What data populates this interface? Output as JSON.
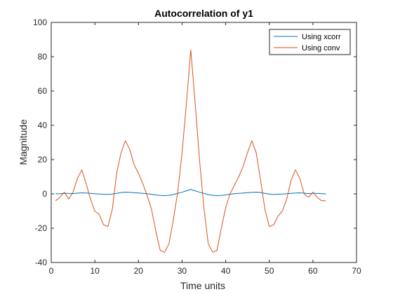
{
  "chart_data": {
    "type": "line",
    "title": "Autocorrelation of y1",
    "xlabel": "Time units",
    "ylabel": "Magnitude",
    "xlim": [
      0,
      70
    ],
    "ylim": [
      -40,
      100
    ],
    "xticks": [
      0,
      10,
      20,
      30,
      40,
      50,
      60,
      70
    ],
    "yticks": [
      -40,
      -20,
      0,
      20,
      40,
      60,
      80,
      100
    ],
    "grid": false,
    "box": true,
    "legend_position": "top-right",
    "series": [
      {
        "name": "Using xcorr",
        "color": "#0072BD",
        "x": [
          1,
          2,
          3,
          4,
          5,
          6,
          7,
          8,
          9,
          10,
          11,
          12,
          13,
          14,
          15,
          16,
          17,
          18,
          19,
          20,
          21,
          22,
          23,
          24,
          25,
          26,
          27,
          28,
          29,
          30,
          31,
          32,
          33,
          34,
          35,
          36,
          37,
          38,
          39,
          40,
          41,
          42,
          43,
          44,
          45,
          46,
          47,
          48,
          49,
          50,
          51,
          52,
          53,
          54,
          55,
          56,
          57,
          58,
          59,
          60,
          61,
          62,
          63
        ],
        "y": [
          0.0,
          0.1,
          0.3,
          0.3,
          0.2,
          0.4,
          0.6,
          0.5,
          0.3,
          0.1,
          -0.1,
          -0.2,
          -0.3,
          -0.1,
          0.3,
          0.8,
          1.0,
          0.9,
          0.7,
          0.5,
          0.3,
          0.1,
          -0.2,
          -0.6,
          -0.9,
          -1.0,
          -0.8,
          -0.4,
          0.3,
          1.0,
          1.8,
          2.6,
          1.8,
          1.0,
          0.3,
          -0.4,
          -0.8,
          -1.0,
          -0.9,
          -0.6,
          -0.2,
          0.1,
          0.3,
          0.5,
          0.7,
          0.9,
          1.0,
          0.8,
          0.3,
          -0.1,
          -0.3,
          -0.2,
          -0.1,
          0.1,
          0.3,
          0.5,
          0.6,
          0.4,
          0.2,
          0.3,
          0.3,
          0.1,
          0.0
        ]
      },
      {
        "name": "Using conv",
        "color": "#D95319",
        "x": [
          1,
          2,
          3,
          4,
          5,
          6,
          7,
          8,
          9,
          10,
          11,
          12,
          13,
          14,
          15,
          16,
          17,
          18,
          19,
          20,
          21,
          22,
          23,
          24,
          25,
          26,
          27,
          28,
          29,
          30,
          31,
          32,
          33,
          34,
          35,
          36,
          37,
          38,
          39,
          40,
          41,
          42,
          43,
          44,
          45,
          46,
          47,
          48,
          49,
          50,
          51,
          52,
          53,
          54,
          55,
          56,
          57,
          58,
          59,
          60,
          61,
          62,
          63
        ],
        "y": [
          -4,
          -2,
          1,
          -3,
          1,
          9,
          14,
          6,
          -3,
          -10,
          -12,
          -18,
          -19,
          -9,
          12,
          24,
          31,
          26,
          17,
          12,
          6,
          -1,
          -9,
          -22,
          -33,
          -34,
          -29,
          -15,
          1,
          24,
          53,
          84,
          53,
          20,
          -8,
          -29,
          -34,
          -33,
          -20,
          -8,
          0,
          5,
          10,
          16,
          24,
          31,
          24,
          8,
          -9,
          -19,
          -18,
          -13,
          -10,
          -3,
          8,
          14,
          9,
          0,
          -2,
          1,
          -2,
          -4,
          -4
        ]
      }
    ]
  }
}
